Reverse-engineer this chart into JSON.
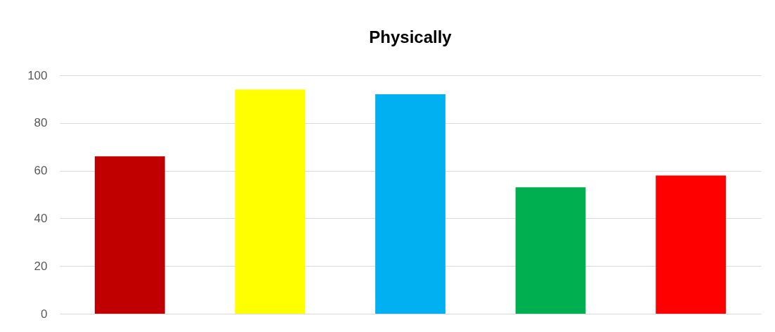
{
  "chart_data": {
    "type": "bar",
    "title": "Physically",
    "categories": [
      null,
      null,
      null,
      null,
      null
    ],
    "values": [
      66,
      94,
      92,
      53,
      58
    ],
    "colors": [
      "#c00000",
      "#ffff00",
      "#00b0f0",
      "#00b050",
      "#ff0000"
    ],
    "ylim": [
      0,
      100
    ],
    "yticks": [
      0,
      20,
      40,
      60,
      80,
      100
    ],
    "grid": "y",
    "legend": false
  }
}
